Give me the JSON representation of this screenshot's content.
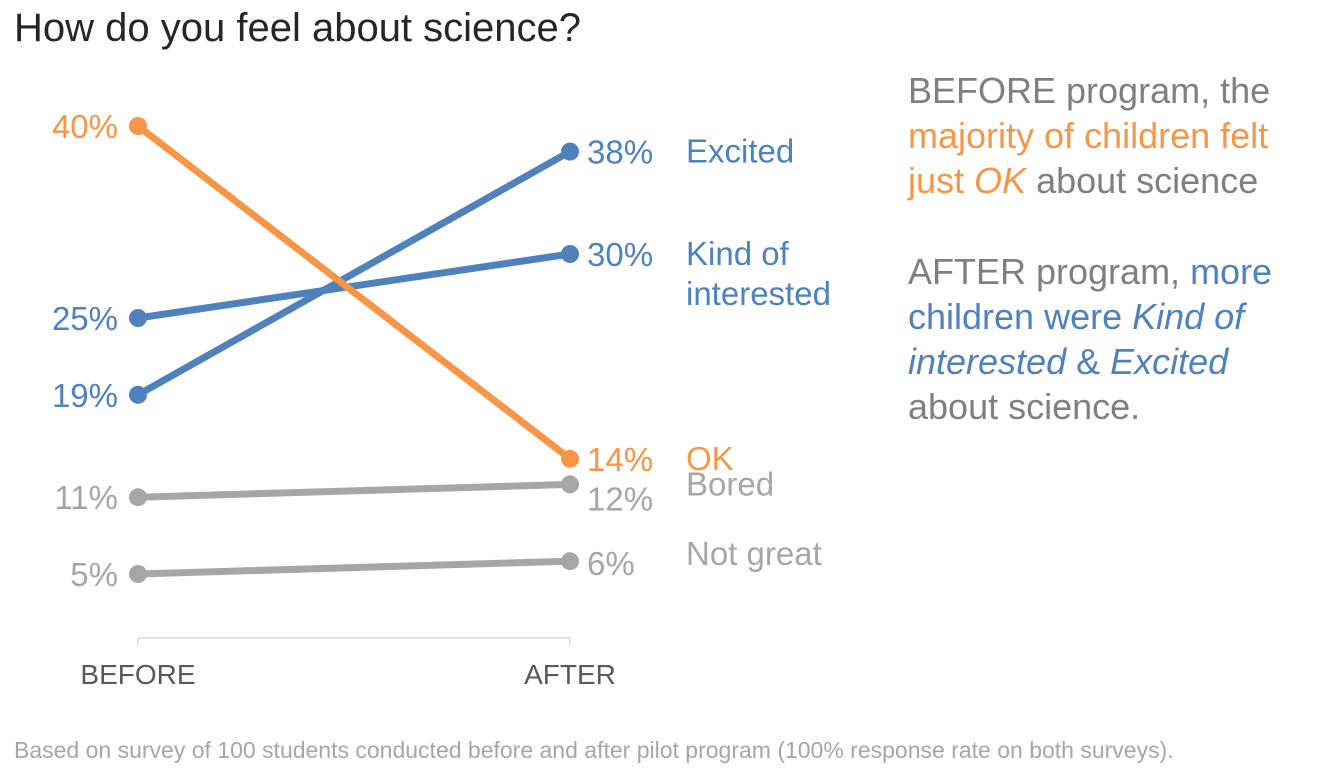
{
  "title": "How do you feel about science?",
  "colors": {
    "orange": "#f79646",
    "blue": "#4f81bd",
    "gray": "#a6a6a6",
    "text_gray": "#7f7f7f"
  },
  "annotation": {
    "before": {
      "a": "BEFORE program, the ",
      "b": "majority of children felt just ",
      "c": "OK",
      "d": "about science"
    },
    "after": {
      "a": "AFTER program, ",
      "b": "more children were ",
      "c": "Kind of interested",
      "d": " & ",
      "e": "Excited",
      "f": " about science."
    }
  },
  "footnote": "Based on survey of 100 students conducted before and after pilot program (100% response rate on both surveys).",
  "chart_data": {
    "type": "line",
    "categories": [
      "BEFORE",
      "AFTER"
    ],
    "series": [
      {
        "name": "Excited",
        "values": [
          19,
          38
        ],
        "color": "#4f81bd",
        "labels": [
          "19%",
          "38%"
        ]
      },
      {
        "name": "Kind of interested",
        "values": [
          25,
          30
        ],
        "color": "#4f81bd",
        "labels": [
          "25%",
          "30%"
        ]
      },
      {
        "name": "OK",
        "values": [
          40,
          14
        ],
        "color": "#f79646",
        "labels": [
          "40%",
          "14%"
        ]
      },
      {
        "name": "Bored",
        "values": [
          11,
          12
        ],
        "color": "#a6a6a6",
        "labels": [
          "11%",
          "12%"
        ]
      },
      {
        "name": "Not great",
        "values": [
          5,
          6
        ],
        "color": "#a6a6a6",
        "labels": [
          "5%",
          "6%"
        ]
      }
    ]
  }
}
